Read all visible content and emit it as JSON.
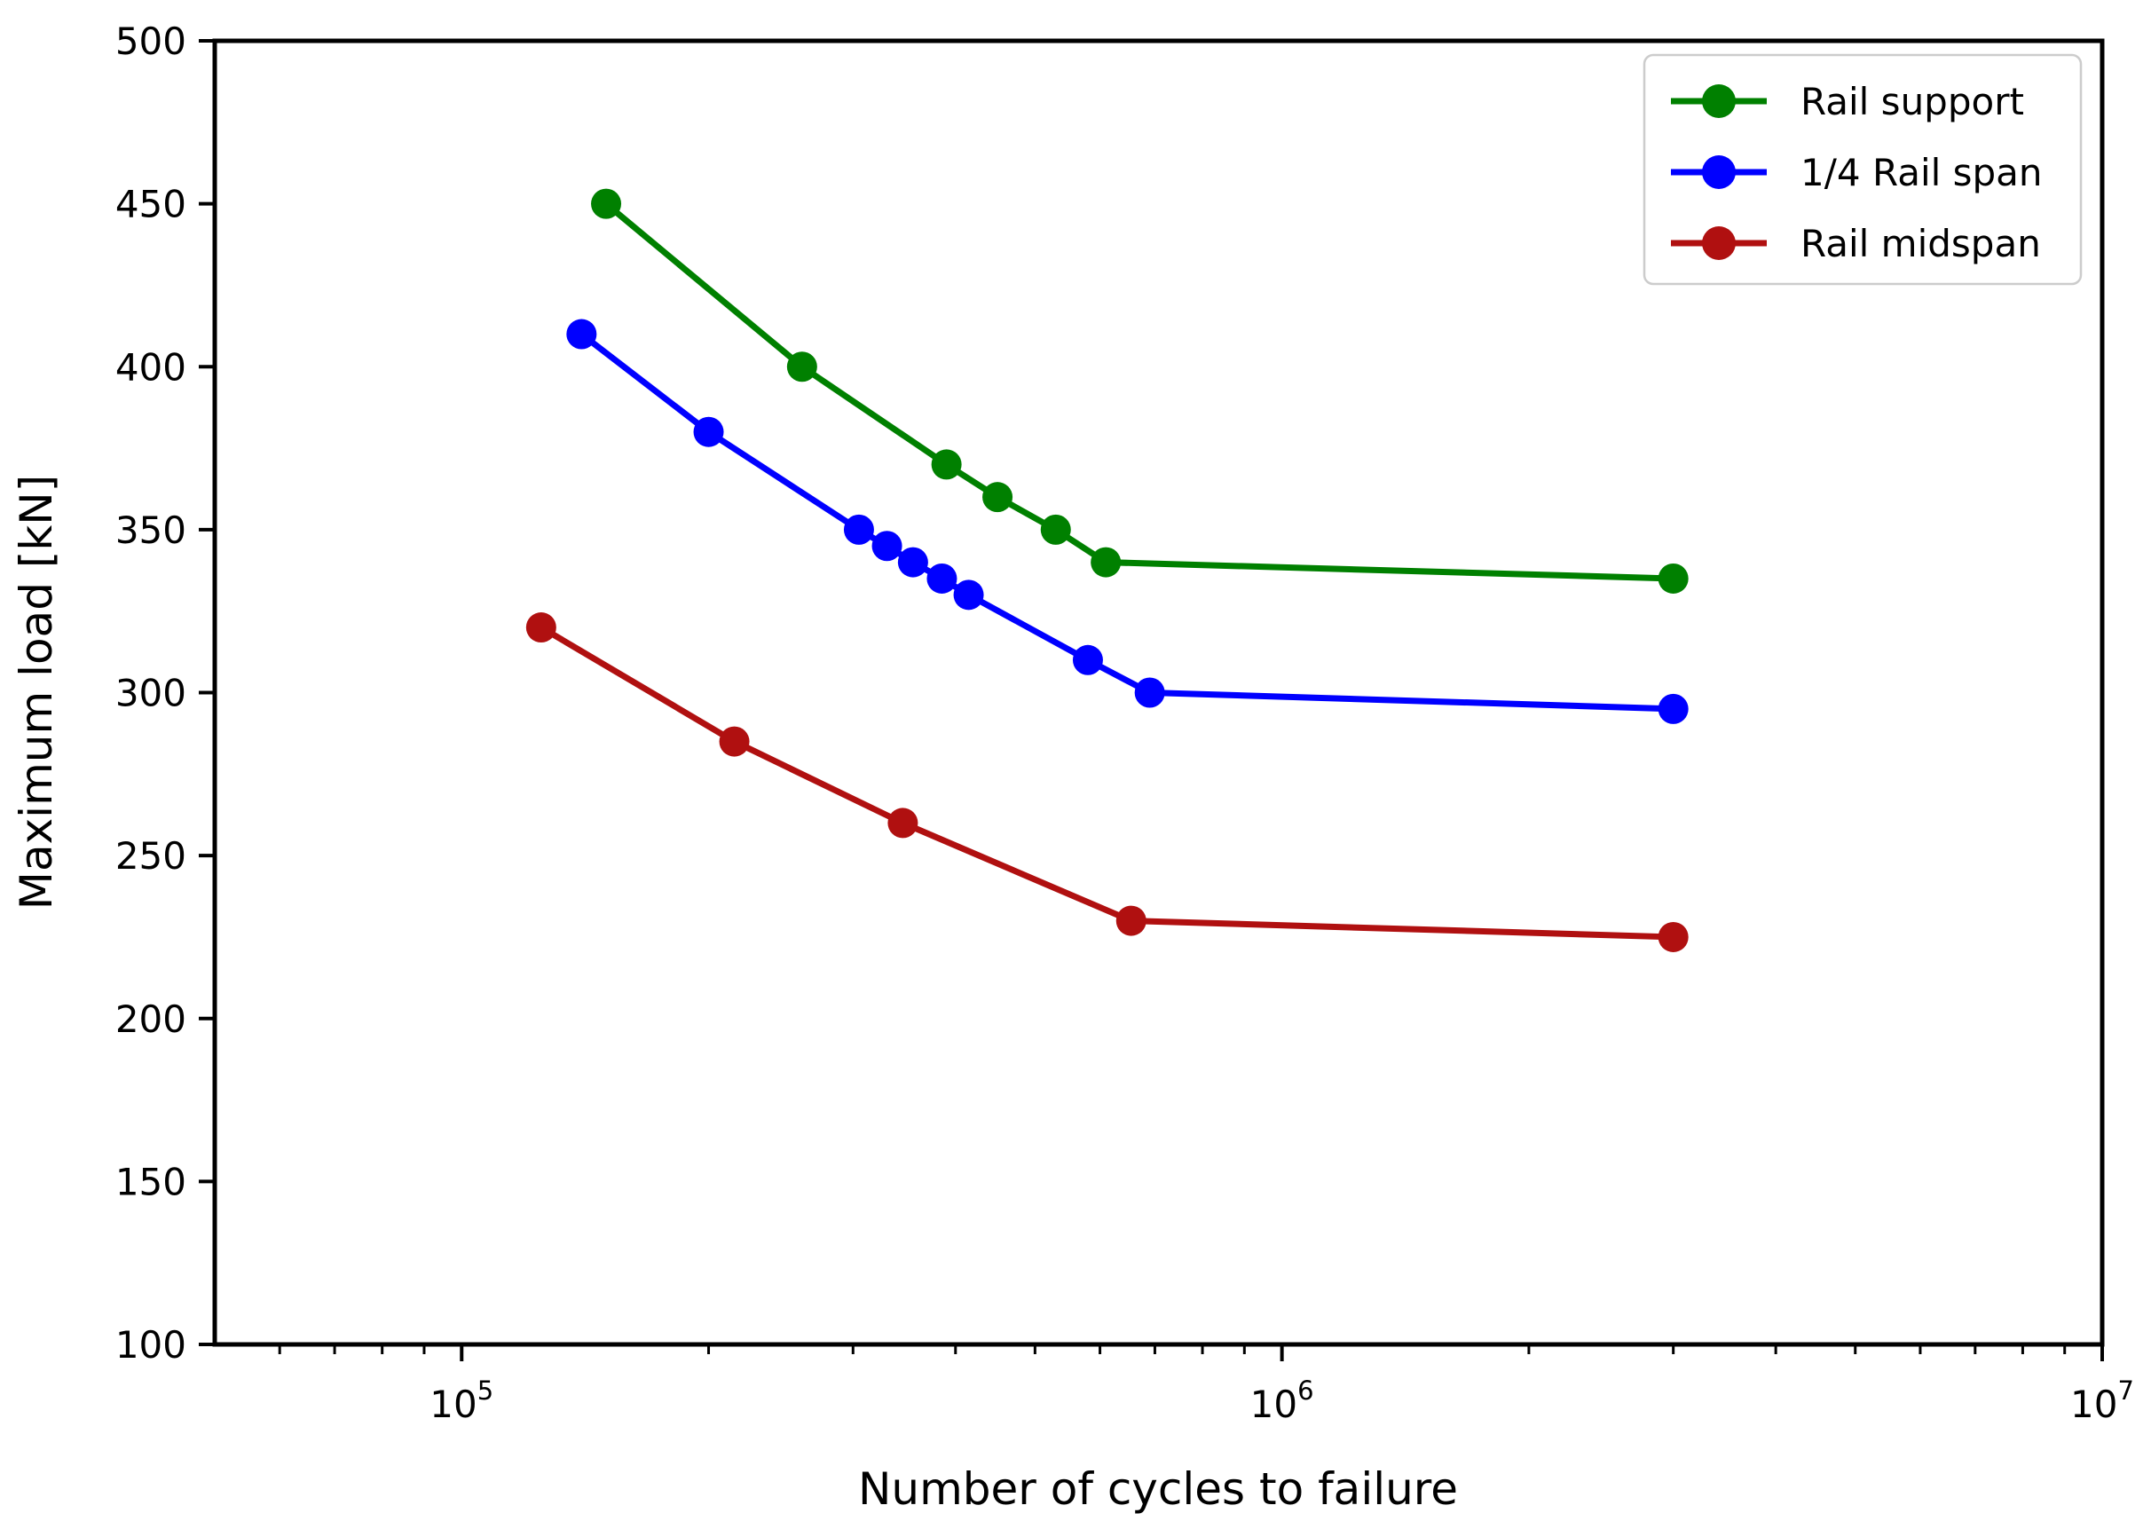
{
  "chart_data": {
    "type": "line",
    "title": "",
    "xlabel": "Number of cycles to failure",
    "ylabel": "Maximum load [kN]",
    "x_scale": "log",
    "y_scale": "linear",
    "xlim": [
      50000,
      10000000
    ],
    "ylim": [
      100,
      500
    ],
    "y_ticks": [
      100,
      150,
      200,
      250,
      300,
      350,
      400,
      450,
      500
    ],
    "x_major_ticks": [
      100000,
      1000000,
      10000000
    ],
    "x_tick_labels": [
      {
        "base": "10",
        "exp": "5"
      },
      {
        "base": "10",
        "exp": "6"
      },
      {
        "base": "10",
        "exp": "7"
      }
    ],
    "grid": false,
    "background": "#FFFFFF",
    "axis_color": "#000000",
    "legend": {
      "position": "upper right",
      "border_color": "#CCCCCC",
      "background": "#FFFFFF"
    },
    "series": [
      {
        "name": "Rail support",
        "color": "#008000",
        "marker": "circle",
        "x": [
          150000,
          260000,
          390000,
          450000,
          530000,
          610000,
          3000000
        ],
        "y": [
          450,
          400,
          370,
          360,
          350,
          340,
          335
        ]
      },
      {
        "name": "1/4 Rail span",
        "color": "#0000FF",
        "marker": "circle",
        "x": [
          140000,
          200000,
          305000,
          330000,
          355000,
          385000,
          415000,
          580000,
          690000,
          3000000
        ],
        "y": [
          410,
          380,
          350,
          345,
          340,
          335,
          330,
          310,
          300,
          295
        ]
      },
      {
        "name": "Rail midspan",
        "color": "#B01010",
        "marker": "circle",
        "x": [
          125000,
          215000,
          345000,
          655000,
          3000000
        ],
        "y": [
          320,
          285,
          260,
          230,
          225
        ]
      }
    ]
  }
}
